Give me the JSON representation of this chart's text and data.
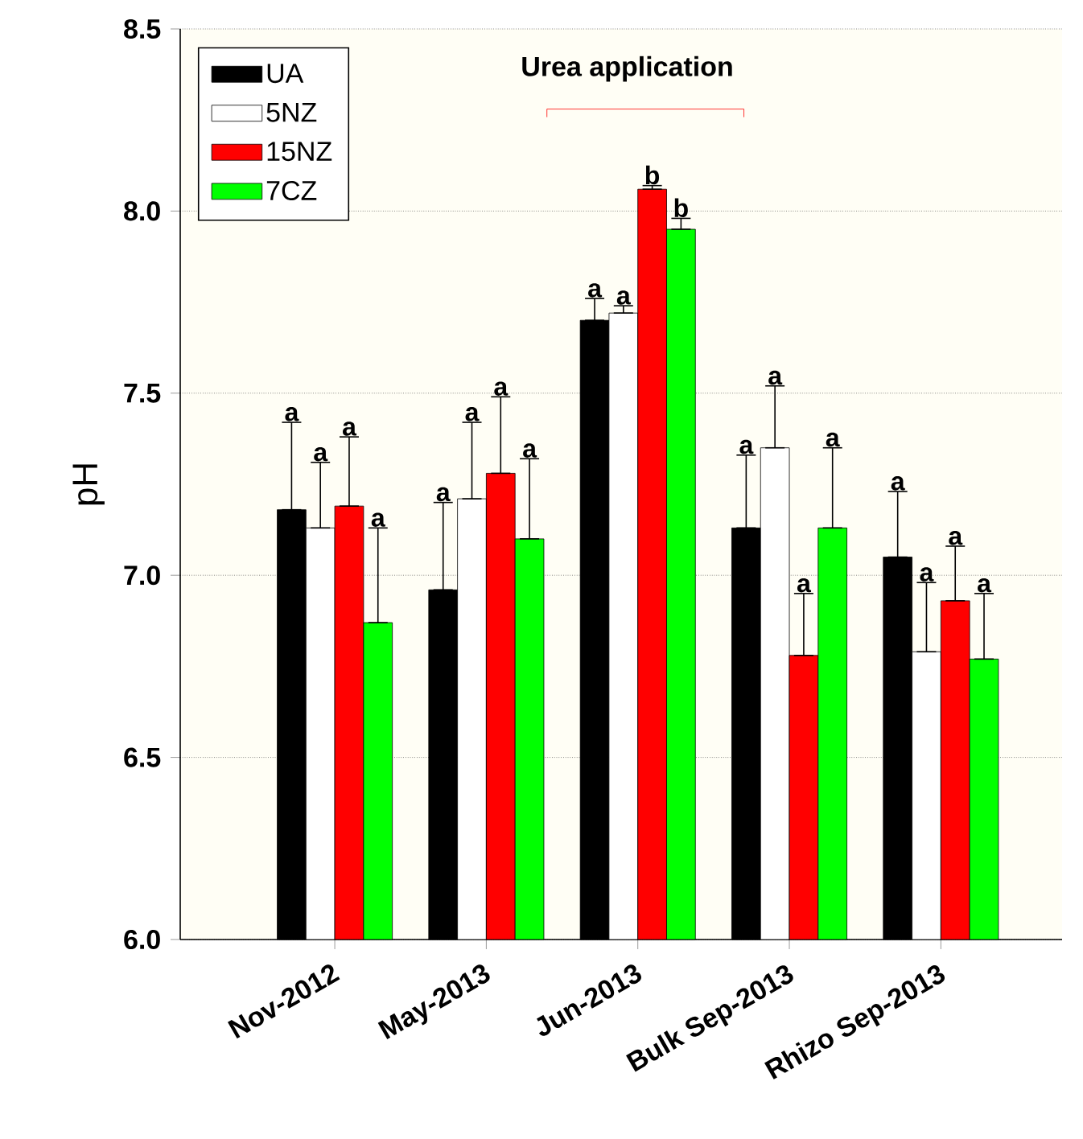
{
  "chart_data": {
    "type": "bar",
    "ylabel": "pH",
    "annotations": [
      "Urea application",
      "a",
      "a",
      "a",
      "a",
      "a",
      "a",
      "a",
      "a",
      "a",
      "a",
      "b",
      "b",
      "a",
      "a",
      "a",
      "a",
      "a",
      "a",
      "a",
      "a"
    ],
    "categories": [
      "Nov-2012",
      "May-2013",
      "Jun-2013",
      "Bulk Sep-2013",
      "Rhizo Sep-2013"
    ],
    "series": [
      {
        "name": "UA",
        "color": "#000000",
        "values": [
          7.18,
          6.96,
          7.7,
          7.13,
          7.05
        ],
        "errors": [
          [
            7.18,
            7.42
          ],
          [
            6.96,
            7.2
          ],
          [
            7.7,
            7.76
          ],
          [
            7.13,
            7.33
          ],
          [
            7.05,
            7.23
          ]
        ]
      },
      {
        "name": "5NZ",
        "color": "#ffffff",
        "values": [
          7.13,
          7.21,
          7.72,
          7.35,
          6.79
        ],
        "errors": [
          [
            7.13,
            7.31
          ],
          [
            7.21,
            7.42
          ],
          [
            7.72,
            7.74
          ],
          [
            7.35,
            7.52
          ],
          [
            6.79,
            6.98
          ]
        ]
      },
      {
        "name": "15NZ",
        "color": "#ff0000",
        "values": [
          7.19,
          7.28,
          8.06,
          6.78,
          6.93
        ],
        "errors": [
          [
            7.19,
            7.38
          ],
          [
            7.28,
            7.49
          ],
          [
            8.06,
            8.07
          ],
          [
            6.78,
            6.95
          ],
          [
            6.93,
            7.08
          ]
        ]
      },
      {
        "name": "7CZ",
        "color": "#00ff00",
        "values": [
          6.87,
          7.1,
          7.95,
          7.13,
          6.77
        ],
        "errors": [
          [
            6.87,
            7.13
          ],
          [
            7.1,
            7.32
          ],
          [
            7.95,
            7.98
          ],
          [
            7.13,
            7.35
          ],
          [
            6.77,
            6.95
          ]
        ]
      }
    ],
    "ylim": [
      6.0,
      8.5
    ],
    "yticks": [
      {
        "value": 6.0,
        "label": "6.0"
      },
      {
        "value": 6.5,
        "label": "6.5"
      },
      {
        "value": 7.0,
        "label": "7.0"
      },
      {
        "value": 7.5,
        "label": "7.5"
      },
      {
        "value": 8.0,
        "label": "8.0"
      },
      {
        "value": 8.5,
        "label": "8.5"
      }
    ],
    "grid": "y",
    "legend": "top left"
  }
}
